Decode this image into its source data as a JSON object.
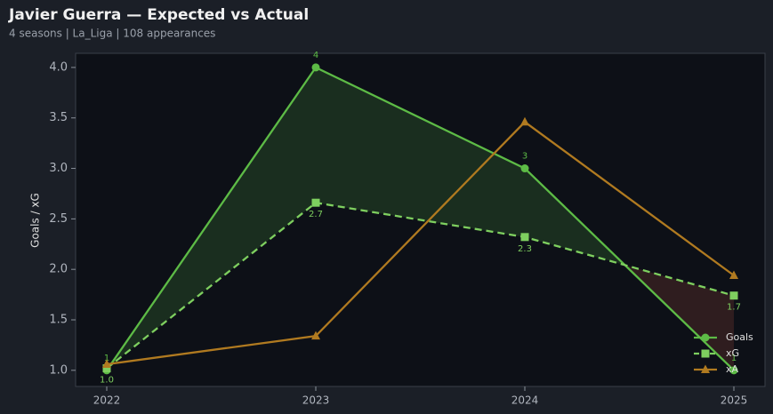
{
  "chart_data": {
    "type": "line",
    "title": "Javier Guerra — Expected vs Actual",
    "subtitle": "4 seasons | La_Liga | 108 appearances",
    "y_label": "Goals / xG",
    "categories": [
      "2022",
      "2023",
      "2024",
      "2025"
    ],
    "series": [
      {
        "name": "Goals",
        "color": "#5dbb46",
        "marker": "circle",
        "dash": false,
        "labels_above": true,
        "values": [
          1,
          4,
          3,
          1
        ]
      },
      {
        "name": "xG",
        "color": "#7ecf5f",
        "marker": "square",
        "dash": true,
        "labels_above": false,
        "values": [
          1.02,
          2.66,
          2.32,
          1.74
        ],
        "value_labels": [
          "1.0",
          "2.7",
          "2.3",
          "1.7"
        ]
      },
      {
        "name": "xA",
        "color": "#b07a20",
        "marker": "triangle",
        "dash": false,
        "values": [
          1.06,
          1.34,
          3.46,
          1.94
        ]
      }
    ],
    "ylim": [
      0.84,
      4.14
    ],
    "yticks": [
      {
        "value": 1,
        "label": "1.0"
      },
      {
        "value": 1.5,
        "label": "1.5"
      },
      {
        "value": 2,
        "label": "2.0"
      },
      {
        "value": 2.5,
        "label": "2.5"
      },
      {
        "value": 3,
        "label": "3.0"
      },
      {
        "value": 3.5,
        "label": "3.5"
      },
      {
        "value": 4,
        "label": "4.0"
      }
    ],
    "fill_between": [
      0,
      1
    ],
    "fill_colors": [
      "#1a2e1f",
      "#2f1d1f"
    ],
    "legend": "lower right",
    "grid": false
  }
}
